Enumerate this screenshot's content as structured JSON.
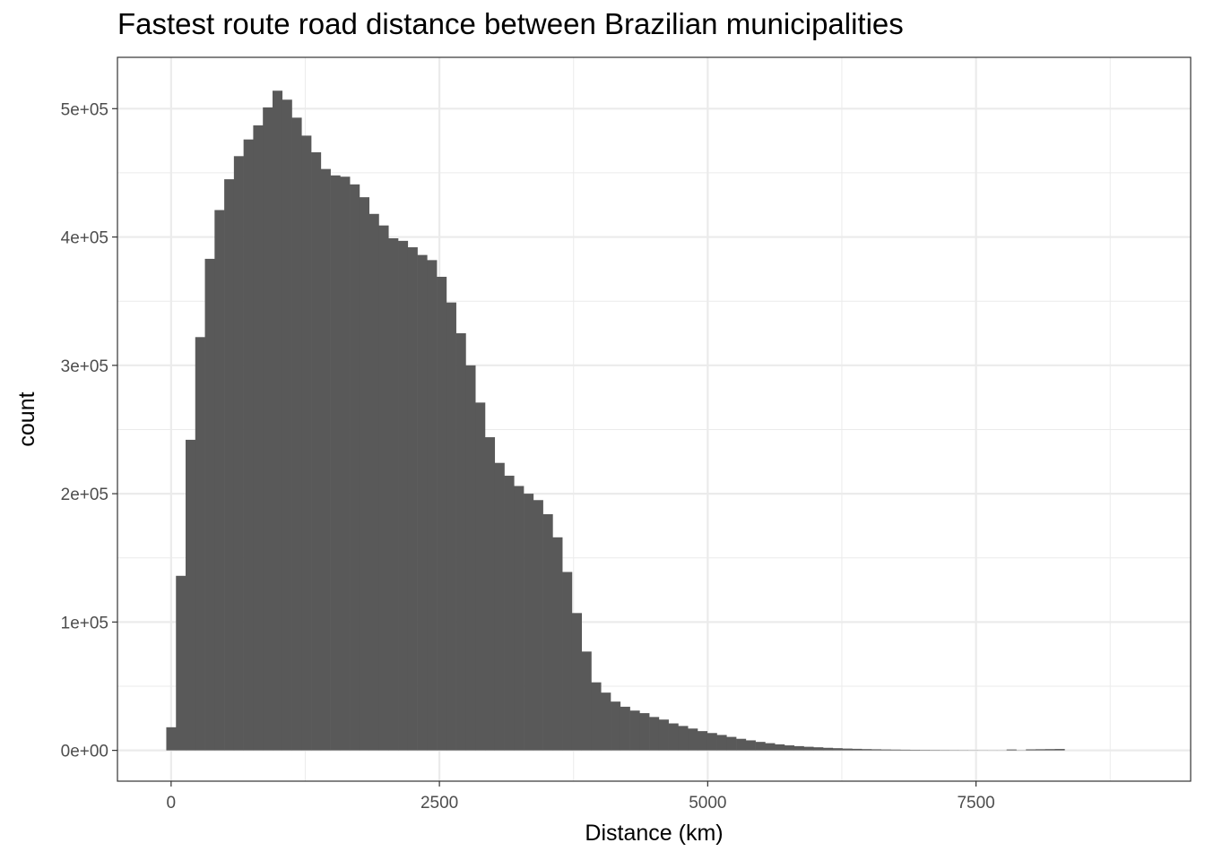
{
  "chart_data": {
    "type": "bar",
    "title": "Fastest route road distance between Brazilian municipalities",
    "xlabel": "Distance (km)",
    "ylabel": "count",
    "xlim": [
      -500,
      9500
    ],
    "ylim": [
      -24000,
      540000
    ],
    "x_ticks": [
      0,
      2500,
      5000,
      7500
    ],
    "x_tick_labels": [
      "0",
      "2500",
      "5000",
      "7500"
    ],
    "x_minor_ticks": [
      1250,
      3750,
      6250,
      8750
    ],
    "y_ticks": [
      0,
      100000,
      200000,
      300000,
      400000,
      500000
    ],
    "y_tick_labels": [
      "0e+00",
      "1e+05",
      "2e+05",
      "3e+05",
      "4e+05",
      "5e+05"
    ],
    "y_minor_ticks": [
      50000,
      150000,
      250000,
      350000,
      450000
    ],
    "grid": true,
    "bin_start": -45,
    "bin_width": 90,
    "values": [
      18000,
      136000,
      242000,
      322000,
      383000,
      421000,
      445000,
      463000,
      476000,
      487000,
      501000,
      514000,
      507000,
      493000,
      479000,
      466000,
      453000,
      448000,
      447000,
      441000,
      431000,
      418000,
      409000,
      399000,
      397000,
      392000,
      386000,
      382000,
      369000,
      349000,
      325000,
      300000,
      271000,
      244000,
      224000,
      214000,
      206000,
      200000,
      195000,
      184000,
      166000,
      139000,
      107000,
      77000,
      53000,
      45000,
      38000,
      34000,
      31000,
      29000,
      26000,
      24000,
      21000,
      19000,
      17000,
      15000,
      13500,
      12000,
      10500,
      9000,
      7800,
      6600,
      5600,
      4700,
      3900,
      3300,
      2800,
      2400,
      2000,
      1700,
      1400,
      1200,
      1000,
      850,
      700,
      600,
      500,
      420,
      350,
      300,
      250,
      200,
      170,
      140,
      120,
      100,
      90,
      700,
      150,
      800,
      900,
      1000,
      1100
    ],
    "bar_color": "#595959",
    "grid_color": "#ebebeb",
    "panel_border_color": "#333333"
  }
}
